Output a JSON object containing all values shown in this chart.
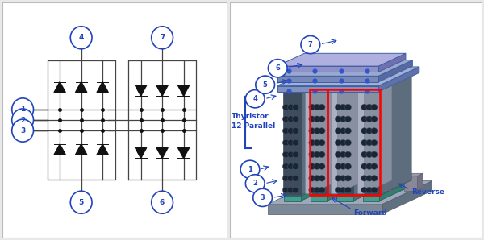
{
  "bg_color": "#e8e8e8",
  "panel_bg": "#ffffff",
  "blue_color": "#2244bb",
  "red_color": "#cc0000",
  "line_color": "#444444",
  "dark_color": "#111111",
  "thyristor_label": "Thyristor\n12 Parallel",
  "forward_label": "Forward",
  "reverse_label": "Reverse",
  "stack_front": "#4a5568",
  "stack_side": "#6b7a8f",
  "stack_top": "#8a9ab0",
  "bus_front": "#7090c8",
  "bus_top": "#90b0e0",
  "bus_side": "#5070a8",
  "base_front": "#7a8898",
  "base_top": "#9aaaba",
  "base_side": "#6a7888",
  "teal_color": "#40a090",
  "connector_color": "#888898"
}
